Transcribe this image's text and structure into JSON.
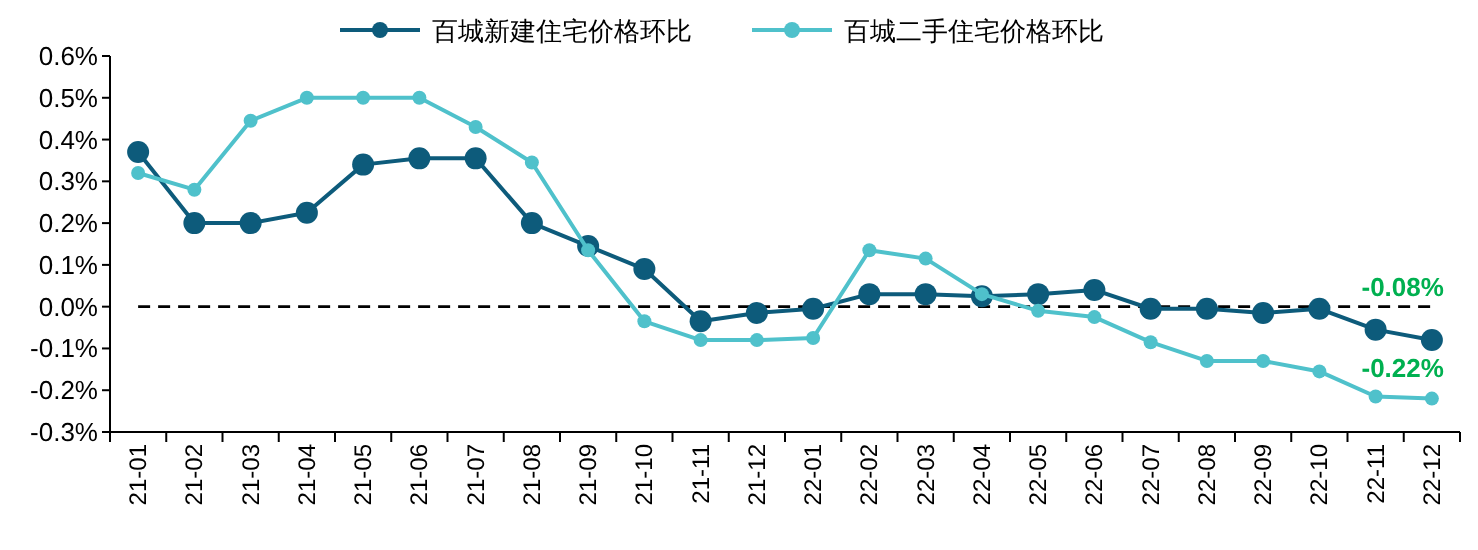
{
  "chart_data": {
    "type": "line",
    "categories": [
      "21-01",
      "21-02",
      "21-03",
      "21-04",
      "21-05",
      "21-06",
      "21-07",
      "21-08",
      "21-09",
      "21-10",
      "21-11",
      "21-12",
      "22-01",
      "22-02",
      "22-03",
      "22-04",
      "22-05",
      "22-06",
      "22-07",
      "22-08",
      "22-09",
      "22-10",
      "22-11",
      "22-12"
    ],
    "series": [
      {
        "name": "百城新建住宅价格环比",
        "color": "#0d5b7b",
        "values": [
          0.37,
          0.2,
          0.2,
          0.225,
          0.34,
          0.355,
          0.355,
          0.2,
          0.145,
          0.09,
          -0.035,
          -0.015,
          -0.005,
          0.03,
          0.03,
          0.025,
          0.03,
          0.04,
          -0.005,
          -0.005,
          -0.015,
          -0.005,
          -0.055,
          -0.08
        ]
      },
      {
        "name": "百城二手住宅价格环比",
        "color": "#4fc1cb",
        "values": [
          0.32,
          0.28,
          0.445,
          0.5,
          0.5,
          0.5,
          0.43,
          0.345,
          0.135,
          -0.035,
          -0.08,
          -0.08,
          -0.075,
          0.135,
          0.115,
          0.03,
          -0.01,
          -0.025,
          -0.085,
          -0.13,
          -0.13,
          -0.155,
          -0.215,
          -0.22
        ]
      }
    ],
    "ylim": [
      -0.3,
      0.6
    ],
    "yticks": [
      {
        "value": -0.3,
        "label": "-0.3%"
      },
      {
        "value": -0.2,
        "label": "-0.2%"
      },
      {
        "value": -0.1,
        "label": "-0.1%"
      },
      {
        "value": 0,
        "label": "0.0%"
      },
      {
        "value": 0.1,
        "label": "0.1%"
      },
      {
        "value": 0.2,
        "label": "0.2%"
      },
      {
        "value": 0.3,
        "label": "0.3%"
      },
      {
        "value": 0.4,
        "label": "0.4%"
      },
      {
        "value": 0.5,
        "label": "0.5%"
      },
      {
        "value": 0.6,
        "label": "0.6%"
      }
    ],
    "ref_lines": [
      {
        "axis": "y",
        "value": 0,
        "color": "#000000",
        "line_style": "dashed"
      }
    ],
    "annotations": [
      {
        "text": "-0.08%",
        "x": "22-12",
        "y": -0.08
      },
      {
        "text": "-0.22%",
        "x": "22-12",
        "y": -0.22
      }
    ],
    "legend": "top",
    "marker": "circle",
    "line_style": "solid",
    "grid": false
  }
}
